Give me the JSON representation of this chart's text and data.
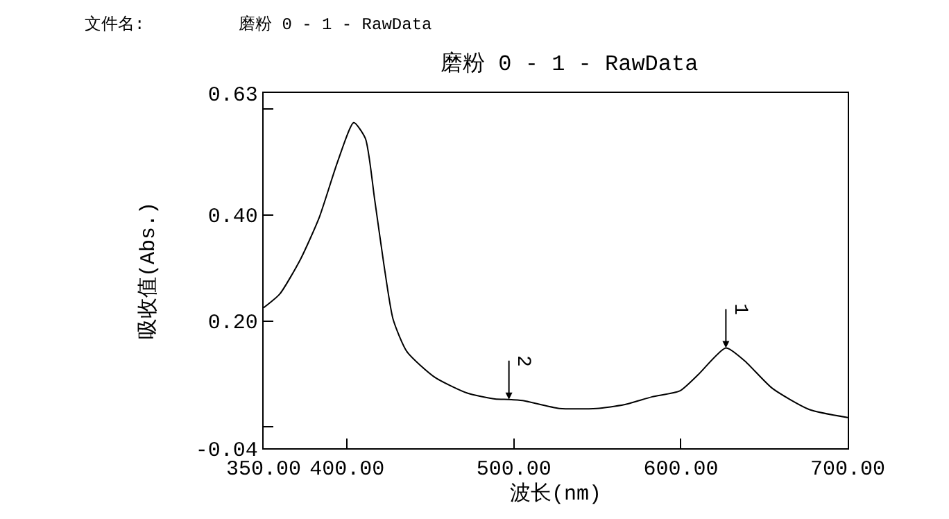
{
  "chart_data": {
    "type": "line",
    "title": "磨粉 0 - 1 - RawData",
    "xlabel": "波长(nm)",
    "ylabel": "吸收值(Abs.)",
    "annotations": [
      "文件名:",
      "磨粉 0 - 1 - RawData",
      {
        "text": "1",
        "x": 627,
        "y": 0.149
      },
      {
        "text": "2",
        "x": 497,
        "y": 0.052
      }
    ],
    "x": [
      350,
      359.7,
      372.2,
      383.3,
      394.3,
      404,
      411,
      416.5,
      422,
      427.6,
      435.9,
      452.5,
      472,
      488.6,
      497,
      505.2,
      527.3,
      549.5,
      566,
      582.8,
      599.4,
      610.5,
      627,
      638.2,
      654.8,
      677,
      700
    ],
    "series": [
      {
        "color": "#000000",
        "values": [
          0.225,
          0.251,
          0.317,
          0.395,
          0.5,
          0.574,
          0.544,
          0.43,
          0.308,
          0.203,
          0.142,
          0.094,
          0.064,
          0.053,
          0.052,
          0.05,
          0.035,
          0.035,
          0.042,
          0.057,
          0.068,
          0.099,
          0.149,
          0.125,
          0.073,
          0.033,
          0.018
        ]
      }
    ],
    "xlim": [
      350,
      700
    ],
    "xticks": [
      {
        "value": 350,
        "label": "350.00"
      },
      {
        "value": 400,
        "label": "400.00"
      },
      {
        "value": 500,
        "label": "500.00"
      },
      {
        "value": 600,
        "label": "600.00"
      },
      {
        "value": 700,
        "label": "700.00"
      }
    ],
    "ylim": [
      -0.04,
      0.63
    ],
    "yticks": [
      -0.04,
      {
        "value": 0.0,
        "label": null
      },
      {
        "value": 0.2,
        "label": "0.20"
      },
      {
        "value": 0.4,
        "label": "0.40"
      },
      {
        "value": 0.6,
        "label": null
      },
      0.63
    ],
    "marker": "none",
    "line_style": "solid"
  }
}
